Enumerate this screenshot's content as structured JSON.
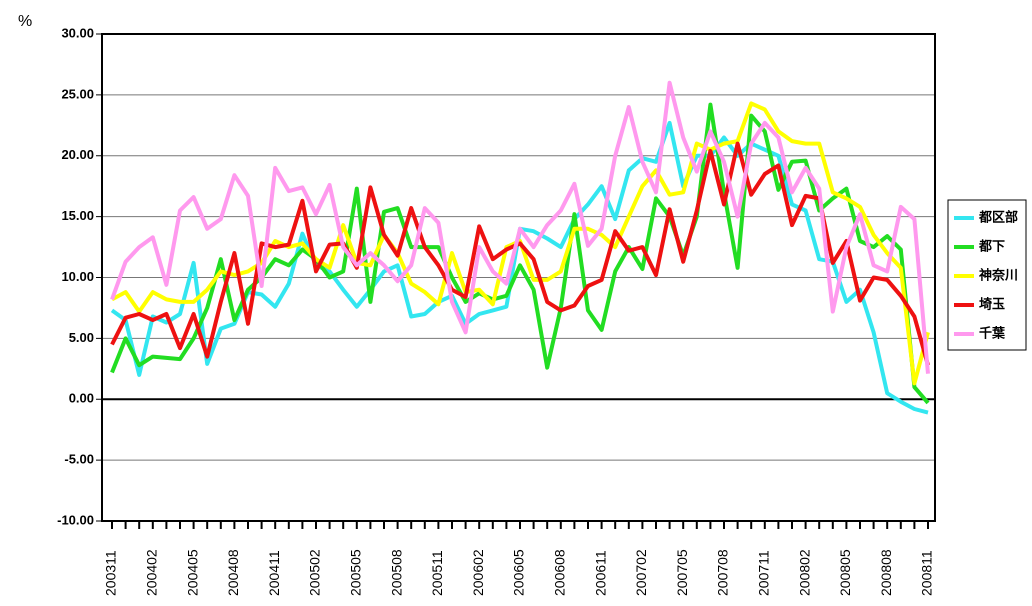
{
  "chart_data": {
    "type": "line",
    "y_label": "%",
    "categories": [
      "200311",
      null,
      null,
      "200402",
      null,
      null,
      "200405",
      null,
      null,
      "200408",
      null,
      null,
      "200411",
      null,
      null,
      "200502",
      null,
      null,
      "200505",
      null,
      null,
      "200508",
      null,
      null,
      "200511",
      null,
      null,
      "200602",
      null,
      null,
      "200605",
      null,
      null,
      "200608",
      null,
      null,
      "200611",
      null,
      null,
      "200702",
      null,
      null,
      "200705",
      null,
      null,
      "200708",
      null,
      null,
      "200711",
      null,
      null,
      "200802",
      null,
      null,
      "200805",
      null,
      null,
      "200808",
      null,
      null,
      "200811"
    ],
    "series": [
      {
        "name": "都区部",
        "color": "#33e6f0",
        "values": [
          7.3,
          6.5,
          2.0,
          6.8,
          6.3,
          7.0,
          11.2,
          2.9,
          5.8,
          6.2,
          8.8,
          8.6,
          7.6,
          9.5,
          13.6,
          11.0,
          10.5,
          9.0,
          7.6,
          9.0,
          10.5,
          11.0,
          6.8,
          7.0,
          8.0,
          8.5,
          6.2,
          7.0,
          7.3,
          7.6,
          14.0,
          13.8,
          13.2,
          12.5,
          14.8,
          16.0,
          17.5,
          14.8,
          18.8,
          19.8,
          19.5,
          22.7,
          17.5,
          20.0,
          20.0,
          21.5,
          20.0,
          21.0,
          20.5,
          20.0,
          16.0,
          15.5,
          11.5,
          11.3,
          8.0,
          9.0,
          5.5,
          0.5,
          -0.2,
          -0.8,
          -1.1
        ]
      },
      {
        "name": "都下",
        "color": "#22dd22",
        "values": [
          2.2,
          5.0,
          2.8,
          3.5,
          3.4,
          3.3,
          5.0,
          7.5,
          11.5,
          6.5,
          9.0,
          10.0,
          11.5,
          11.0,
          12.3,
          11.5,
          10.0,
          10.5,
          17.3,
          8.0,
          15.4,
          15.7,
          12.5,
          12.5,
          12.5,
          10.0,
          8.0,
          8.7,
          8.2,
          8.5,
          11.0,
          9.0,
          2.6,
          7.5,
          15.2,
          7.3,
          5.7,
          10.5,
          12.5,
          10.7,
          16.5,
          15.0,
          11.8,
          15.0,
          24.2,
          17.0,
          10.8,
          23.3,
          22.0,
          17.2,
          19.5,
          19.6,
          15.5,
          16.5,
          17.3,
          13.0,
          12.5,
          13.4,
          12.3,
          1.0,
          -0.3
        ]
      },
      {
        "name": "神奈川",
        "color": "#ffff00",
        "values": [
          8.2,
          8.8,
          7.2,
          8.8,
          8.2,
          8.0,
          8.0,
          9.0,
          10.5,
          10.2,
          10.5,
          11.2,
          13.0,
          12.5,
          12.8,
          11.5,
          10.8,
          14.3,
          11.2,
          11.0,
          13.5,
          12.0,
          9.5,
          8.8,
          7.8,
          12.0,
          8.8,
          9.0,
          7.8,
          12.5,
          13.0,
          9.8,
          9.8,
          10.5,
          14.0,
          14.0,
          13.5,
          12.5,
          15.0,
          17.5,
          18.8,
          16.8,
          17.0,
          21.0,
          20.5,
          21.0,
          21.2,
          24.3,
          23.8,
          22.0,
          21.2,
          21.0,
          21.0,
          17.0,
          16.5,
          15.8,
          13.5,
          12.0,
          10.8,
          1.3,
          5.5
        ]
      },
      {
        "name": "埼玉",
        "color": "#ee1111",
        "values": [
          4.5,
          6.7,
          7.0,
          6.5,
          7.0,
          4.2,
          7.0,
          3.5,
          8.0,
          12.0,
          6.2,
          12.8,
          12.5,
          12.7,
          16.3,
          10.5,
          12.7,
          12.8,
          10.8,
          17.4,
          13.5,
          11.8,
          15.7,
          12.5,
          11.0,
          9.0,
          8.4,
          14.2,
          11.5,
          12.3,
          12.8,
          11.5,
          8.0,
          7.3,
          7.7,
          9.3,
          9.8,
          13.8,
          12.2,
          12.5,
          10.2,
          15.6,
          11.3,
          15.5,
          20.4,
          16.0,
          21.0,
          16.8,
          18.5,
          19.2,
          14.3,
          16.7,
          16.5,
          11.2,
          13.0,
          8.1,
          10.0,
          9.8,
          8.5,
          6.8,
          2.8
        ]
      },
      {
        "name": "千葉",
        "color": "#ff99ee",
        "values": [
          8.2,
          11.3,
          12.5,
          13.3,
          9.4,
          15.5,
          16.6,
          14.0,
          14.8,
          18.4,
          16.7,
          9.3,
          19.0,
          17.1,
          17.4,
          15.2,
          17.6,
          12.5,
          11.0,
          12.0,
          11.0,
          9.7,
          11.0,
          15.7,
          14.5,
          8.0,
          5.5,
          12.5,
          10.5,
          9.5,
          14.0,
          12.5,
          14.3,
          15.5,
          17.7,
          12.6,
          14.0,
          20.0,
          24.0,
          19.5,
          17.0,
          26.0,
          21.5,
          18.7,
          22.0,
          19.5,
          15.0,
          21.0,
          22.7,
          21.5,
          17.0,
          19.0,
          17.3,
          7.2,
          12.5,
          15.2,
          11.0,
          10.5,
          15.8,
          14.8,
          2.1
        ]
      }
    ],
    "ylim": [
      -10,
      30
    ],
    "yticks": [
      {
        "value": -10,
        "label": "-10.00"
      },
      {
        "value": -5,
        "label": "-5.00"
      },
      {
        "value": 0,
        "label": "0.00"
      },
      {
        "value": 5,
        "label": "5.00"
      },
      {
        "value": 10,
        "label": "10.00"
      },
      {
        "value": 15,
        "label": "15.00"
      },
      {
        "value": 20,
        "label": "20.00"
      },
      {
        "value": 25,
        "label": "25.00"
      },
      {
        "value": 30,
        "label": "30.00"
      }
    ],
    "grid": true,
    "legend": "right"
  }
}
